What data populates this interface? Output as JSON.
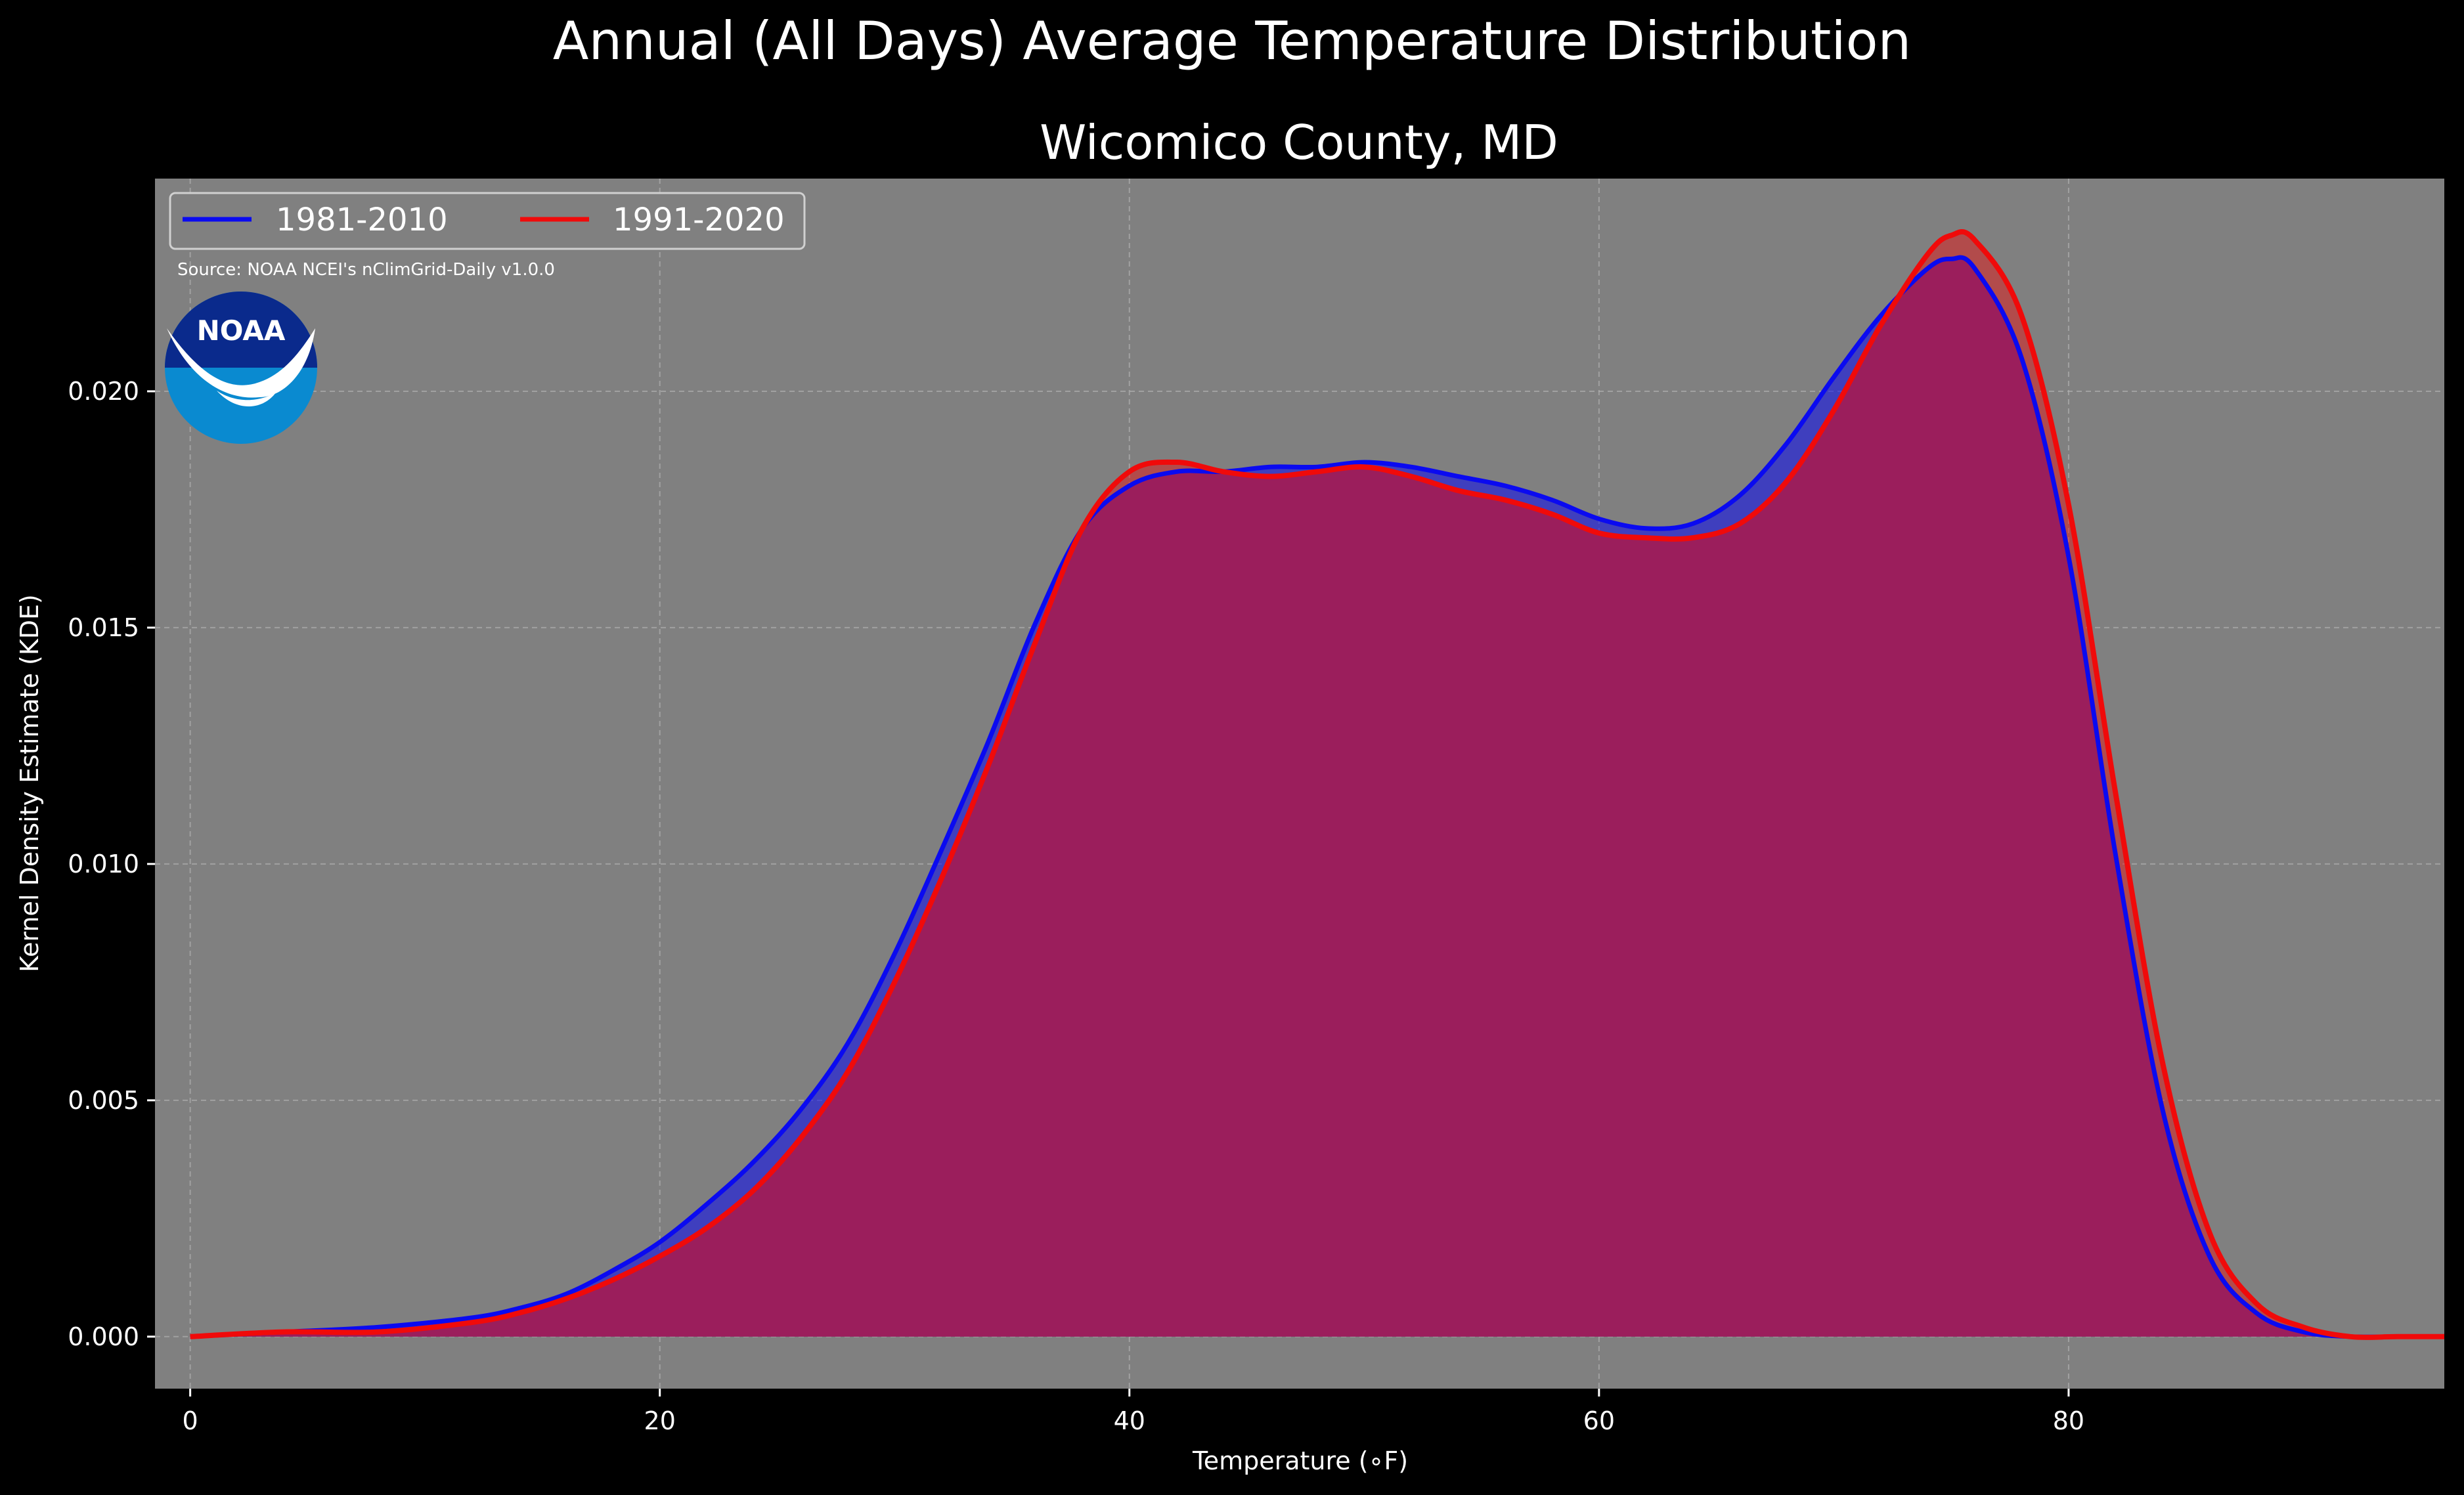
{
  "title": "Annual (All Days) Average Temperature Distribution",
  "subtitle": "Wicomico County, MD",
  "source": "Source: NOAA NCEI's nClimGrid-Daily v1.0.0",
  "logo_text": "NOAA",
  "colors": {
    "background": "#000000",
    "plot_background": "#808080",
    "series_1981": "#0a0af0",
    "series_1991": "#f00a0a",
    "overlap_fill": "#9b1e5c",
    "text": "#ffffff",
    "grid": "#b0b0b0",
    "logo_dark_blue": "#0a2a8c",
    "logo_light_blue": "#0a8ad0"
  },
  "chart_data": {
    "type": "area",
    "title": "Annual (All Days) Average Temperature Distribution",
    "subtitle": "Wicomico County, MD",
    "xlabel": "Temperature (∘F)",
    "ylabel": "Kernel Density Estimate (KDE)",
    "xlim": [
      -1.5,
      96.0
    ],
    "ylim": [
      -0.0011,
      0.0245
    ],
    "xticks": [
      0,
      20,
      40,
      60,
      80
    ],
    "xtick_labels": [
      "0",
      "20",
      "40",
      "60",
      "80"
    ],
    "yticks": [
      0.0,
      0.005,
      0.01,
      0.015,
      0.02
    ],
    "ytick_labels": [
      "0.000",
      "0.005",
      "0.010",
      "0.015",
      "0.020"
    ],
    "grid": true,
    "legend_position": "upper-left",
    "series": [
      {
        "name": "1981-2010",
        "color": "#0a0af0",
        "x": [
          0,
          4,
          8,
          12,
          14,
          16,
          18,
          20,
          22,
          24,
          26,
          28,
          30,
          32,
          34,
          36,
          38,
          40,
          42,
          44,
          46,
          48,
          50,
          52,
          54,
          56,
          58,
          60,
          62,
          64,
          66,
          68,
          70,
          72,
          74,
          75,
          76,
          78,
          80,
          82,
          84,
          86,
          88,
          90,
          92,
          94,
          96
        ],
        "values": [
          0.0,
          0.0001,
          0.0002,
          0.0004,
          0.0006,
          0.0009,
          0.0014,
          0.002,
          0.0028,
          0.0037,
          0.0048,
          0.0062,
          0.0081,
          0.0103,
          0.0126,
          0.0151,
          0.0171,
          0.018,
          0.0183,
          0.0183,
          0.0184,
          0.0184,
          0.0185,
          0.0184,
          0.0182,
          0.018,
          0.0177,
          0.0173,
          0.0171,
          0.0172,
          0.0178,
          0.0189,
          0.0203,
          0.0216,
          0.0226,
          0.0228,
          0.0226,
          0.0207,
          0.0165,
          0.0102,
          0.0048,
          0.0017,
          0.0005,
          0.0001,
          0.0,
          0.0,
          0.0
        ]
      },
      {
        "name": "1991-2020",
        "color": "#f00a0a",
        "x": [
          0,
          4,
          8,
          12,
          14,
          16,
          18,
          20,
          22,
          24,
          26,
          28,
          30,
          32,
          34,
          36,
          38,
          40,
          42,
          44,
          46,
          48,
          50,
          52,
          54,
          56,
          58,
          60,
          62,
          64,
          66,
          68,
          70,
          72,
          74,
          75,
          76,
          78,
          80,
          82,
          84,
          86,
          88,
          90,
          92,
          94,
          96
        ],
        "values": [
          0.0,
          0.0001,
          0.0001,
          0.0003,
          0.0005,
          0.0008,
          0.0012,
          0.0017,
          0.0023,
          0.0031,
          0.0042,
          0.0056,
          0.0075,
          0.0097,
          0.0121,
          0.0147,
          0.0171,
          0.0183,
          0.0185,
          0.0183,
          0.0182,
          0.0183,
          0.0184,
          0.0182,
          0.0179,
          0.0177,
          0.0174,
          0.017,
          0.0169,
          0.0169,
          0.0172,
          0.0181,
          0.0196,
          0.0214,
          0.0229,
          0.0233,
          0.0232,
          0.0216,
          0.0176,
          0.0115,
          0.0058,
          0.0022,
          0.0007,
          0.0002,
          0.0,
          0.0,
          0.0
        ]
      }
    ]
  }
}
